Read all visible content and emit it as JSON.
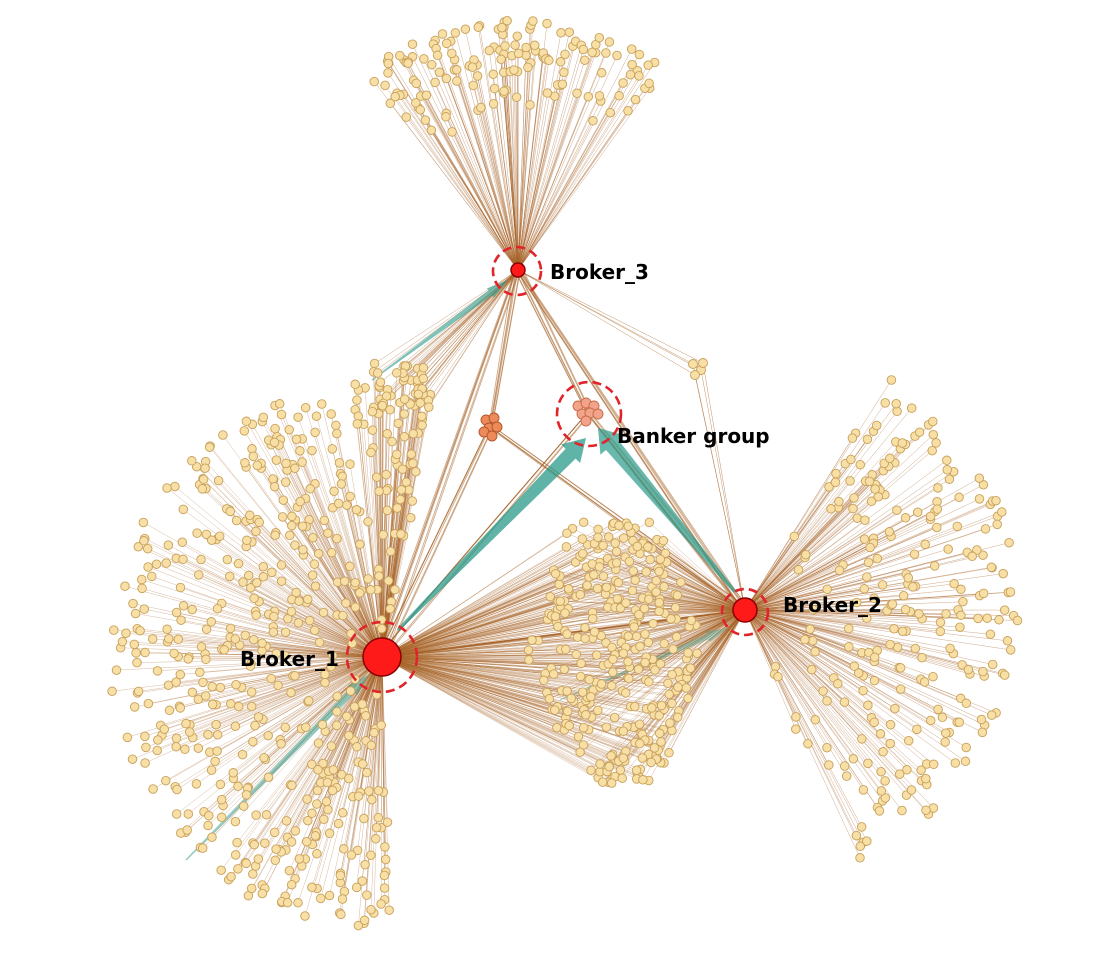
{
  "diagram": {
    "labels": {
      "broker_1": "Broker_1",
      "broker_2": "Broker_2",
      "broker_3": "Broker_3",
      "banker_group": "Banker group"
    },
    "colors": {
      "leaf_fill": "#f7dfa6",
      "leaf_stroke": "#c8a05a",
      "edge": "#a8652a",
      "hub_fill": "#ff1a1a",
      "hub_stroke": "#8a0000",
      "highlight_ring": "#e0242a",
      "banker_fill": "#f2a48a",
      "flow": "#2a9a8a"
    }
  }
}
